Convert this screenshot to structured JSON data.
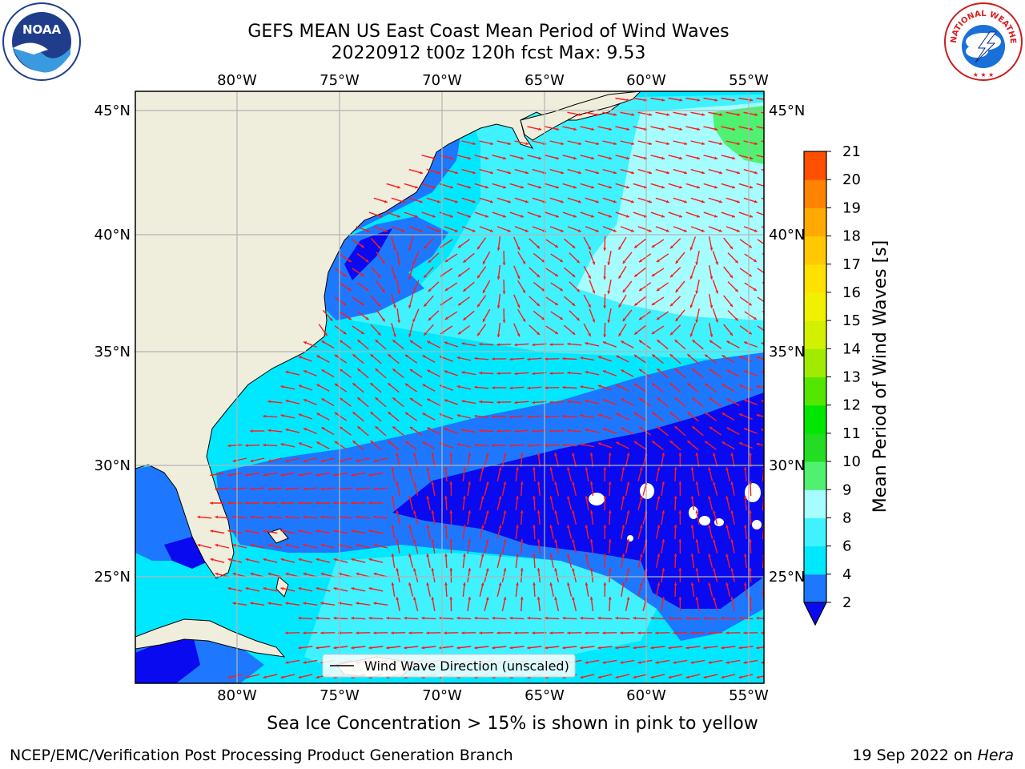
{
  "header": {
    "line1": "GEFS MEAN US East Coast Mean Period of Wind Waves",
    "line2": "20220912 t00z 120h fcst   Max: 9.53"
  },
  "map": {
    "lon_labels": [
      "80°W",
      "75°W",
      "70°W",
      "65°W",
      "60°W",
      "55°W"
    ],
    "lat_labels": [
      "45°N",
      "40°N",
      "35°N",
      "30°N",
      "25°N"
    ],
    "legend_label": "Wind Wave Direction (unscaled)",
    "colors": {
      "land": "#efeddc",
      "blue_2_4": "#1e78ff",
      "cyan_4_6": "#00e8ff",
      "cyan_6_8": "#40f2ff",
      "lightcyan_8_9": "#a6fdff",
      "green_9_10": "#50f070",
      "under_2": "#0a0af0",
      "arrow": "#ff1a1a",
      "grid": "#b4b4b4"
    }
  },
  "colorbar": {
    "label": "Mean Period of Wind Waves [s]",
    "ticks": [
      "2",
      "4",
      "6",
      "8",
      "9",
      "10",
      "11",
      "12",
      "13",
      "14",
      "15",
      "16",
      "17",
      "18",
      "19",
      "20",
      "21"
    ],
    "colors": [
      "#1e78ff",
      "#00e8ff",
      "#40f2ff",
      "#a6fdff",
      "#50f070",
      "#23dc23",
      "#00e600",
      "#55e600",
      "#a0eb00",
      "#d2f000",
      "#f0f000",
      "#ffe100",
      "#ffc800",
      "#ffaa00",
      "#ff8200",
      "#ff5000",
      "#ff2800",
      "#ff0000"
    ],
    "under_color": "#0a0af0"
  },
  "footer": {
    "ice_note": "Sea Ice Concentration > 15% is shown in pink to yellow",
    "credit": "NCEP/EMC/Verification Post Processing Product Generation Branch",
    "date_prefix": "19 Sep 2022 on ",
    "machine": "Hera"
  },
  "logos": {
    "noaa_text": "NOAA",
    "nws_text": "NATIONAL WEATHER SERVICE"
  }
}
